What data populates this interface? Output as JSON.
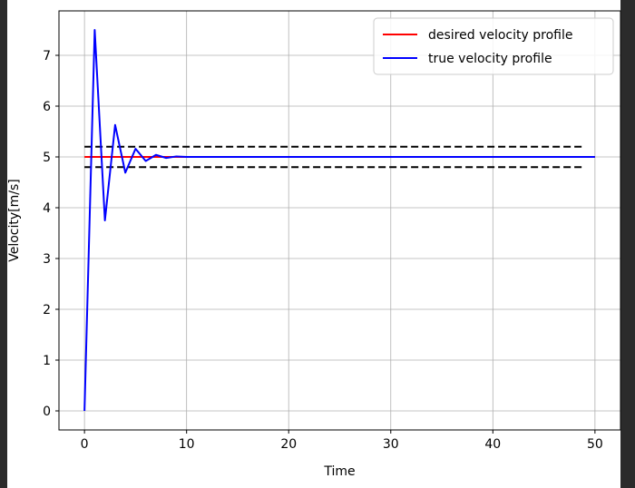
{
  "chart_data": {
    "type": "line",
    "title": "",
    "xlabel": "Time",
    "ylabel": "Velocity[m/s]",
    "xlim": [
      -2.5,
      52.5
    ],
    "ylim": [
      -0.375,
      7.875
    ],
    "xticks": [
      0,
      10,
      20,
      30,
      40,
      50
    ],
    "yticks": [
      0,
      1,
      2,
      3,
      4,
      5,
      6,
      7
    ],
    "grid": true,
    "legend_position": "upper right",
    "series": [
      {
        "name": "desired velocity profile",
        "color": "#ff0000",
        "x": [
          0,
          50
        ],
        "y": [
          5,
          5
        ]
      },
      {
        "name": "true velocity profile",
        "color": "#0000ff",
        "x": [
          0,
          1,
          2,
          3,
          4,
          5,
          6,
          7,
          8,
          9,
          10,
          11,
          12,
          13,
          14,
          15,
          16,
          17,
          18,
          19,
          20,
          21,
          22,
          23,
          24,
          25,
          26,
          27,
          28,
          29,
          30,
          31,
          32,
          33,
          34,
          35,
          36,
          37,
          38,
          39,
          40,
          41,
          42,
          43,
          44,
          45,
          46,
          47,
          48,
          49,
          50
        ],
        "y": [
          0,
          7.5,
          3.75,
          5.63,
          4.69,
          5.16,
          4.92,
          5.04,
          4.98,
          5.01,
          5.0,
          5.0,
          5.0,
          5.0,
          5.0,
          5.0,
          5.0,
          5.0,
          5.0,
          5.0,
          5.0,
          5.0,
          5.0,
          5.0,
          5.0,
          5.0,
          5.0,
          5.0,
          5.0,
          5.0,
          5.0,
          5.0,
          5.0,
          5.0,
          5.0,
          5.0,
          5.0,
          5.0,
          5.0,
          5.0,
          5.0,
          5.0,
          5.0,
          5.0,
          5.0,
          5.0,
          5.0,
          5.0,
          5.0,
          5.0,
          5.0
        ]
      }
    ],
    "bounds": [
      {
        "color": "#000000",
        "style": "dashed",
        "x": [
          0,
          49
        ],
        "y": [
          5.2,
          5.2
        ]
      },
      {
        "color": "#000000",
        "style": "dashed",
        "x": [
          0,
          49
        ],
        "y": [
          4.8,
          4.8
        ]
      }
    ]
  }
}
